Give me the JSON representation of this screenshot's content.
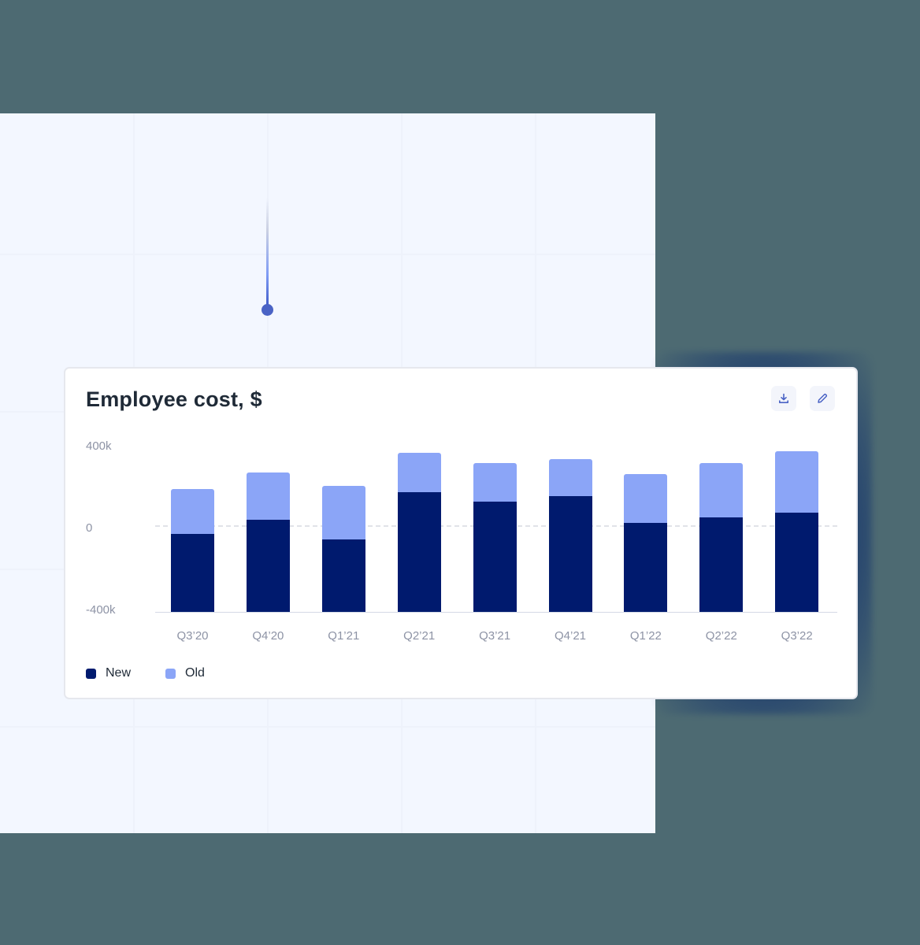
{
  "card": {
    "title": "Employee cost, $",
    "actions": [
      {
        "name": "download",
        "icon": "download-icon"
      },
      {
        "name": "edit",
        "icon": "pencil-icon"
      }
    ]
  },
  "colors": {
    "new": "#001a6e",
    "old": "#8ba5f7",
    "background": "#4d6a72",
    "panel": "#f3f7ff",
    "icon_accent": "#4a63c5"
  },
  "y_axis": {
    "labels": [
      "400k",
      "0",
      "-400k"
    ]
  },
  "legend": {
    "items": [
      {
        "label": "New",
        "color": "#001a6e"
      },
      {
        "label": "Old",
        "color": "#8ba5f7"
      }
    ]
  },
  "chart_data": {
    "type": "bar",
    "stacked": true,
    "title": "Employee cost, $",
    "xlabel": "",
    "ylabel": "",
    "ylim": [
      -400000,
      400000
    ],
    "y_ticks": [
      400000,
      0,
      -400000
    ],
    "y_tick_labels": [
      "400k",
      "0",
      "-400k"
    ],
    "grid": false,
    "zero_line": "dashed",
    "legend_position": "bottom-left",
    "categories": [
      "Q3’20",
      "Q4’20",
      "Q1’21",
      "Q2’21",
      "Q3’21",
      "Q4’21",
      "Q1’22",
      "Q2’22",
      "Q3’22"
    ],
    "series": [
      {
        "name": "New",
        "color": "#001a6e",
        "values": [
          -37000,
          29000,
          -62000,
          158000,
          114000,
          139000,
          15000,
          40000,
          62000
        ],
        "note": "bars drawn from -400k baseline up to value"
      },
      {
        "name": "Old",
        "color": "#8ba5f7",
        "values": [
          209000,
          220000,
          250000,
          183000,
          180000,
          172000,
          227000,
          253000,
          286000
        ],
        "note": "stacked on top of New"
      }
    ]
  }
}
